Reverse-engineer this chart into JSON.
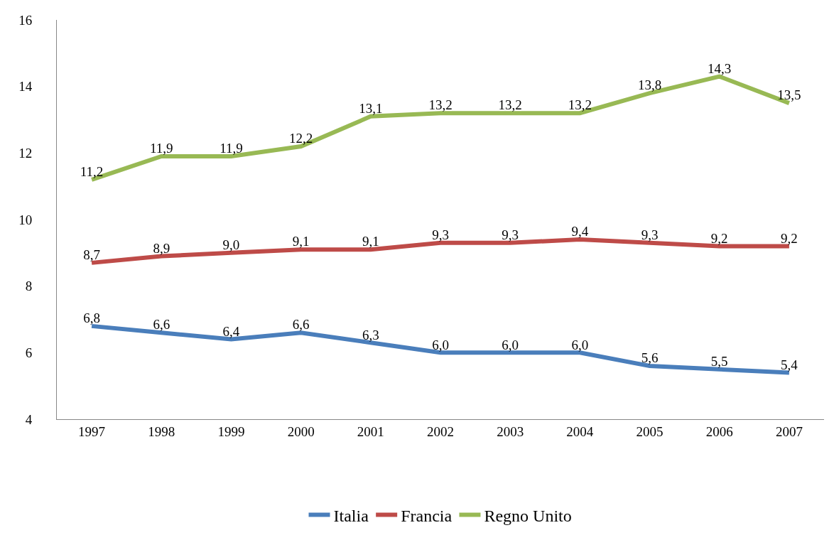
{
  "chart_data": {
    "type": "line",
    "categories": [
      "1997",
      "1998",
      "1999",
      "2000",
      "2001",
      "2002",
      "2003",
      "2004",
      "2005",
      "2006",
      "2007"
    ],
    "series": [
      {
        "name": "Italia",
        "color": "#4a7ebb",
        "values": [
          6.8,
          6.6,
          6.4,
          6.6,
          6.3,
          6.0,
          6.0,
          6.0,
          5.6,
          5.5,
          5.4
        ],
        "value_labels": [
          "6,8",
          "6,6",
          "6,4",
          "6,6",
          "6,3",
          "6,0",
          "6,0",
          "6,0",
          "5,6",
          "5,5",
          "5,4"
        ]
      },
      {
        "name": "Francia",
        "color": "#be4b48",
        "values": [
          8.7,
          8.9,
          9.0,
          9.1,
          9.1,
          9.3,
          9.3,
          9.4,
          9.3,
          9.2,
          9.2
        ],
        "value_labels": [
          "8,7",
          "8,9",
          "9,0",
          "9,1",
          "9,1",
          "9,3",
          "9,3",
          "9,4",
          "9,3",
          "9,2",
          "9,2"
        ]
      },
      {
        "name": "Regno Unito",
        "color": "#98b954",
        "values": [
          11.2,
          11.9,
          11.9,
          12.2,
          13.1,
          13.2,
          13.2,
          13.2,
          13.8,
          14.3,
          13.5
        ],
        "value_labels": [
          "11,2",
          "11,9",
          "11,9",
          "12,2",
          "13,1",
          "13,2",
          "13,2",
          "13,2",
          "13,8",
          "14,3",
          "13,5"
        ]
      }
    ],
    "ylim": [
      4,
      16
    ],
    "yticks": [
      4,
      6,
      8,
      10,
      12,
      14,
      16
    ],
    "grid": false,
    "legend": "bottom",
    "marker": "none",
    "line_style": "solid"
  }
}
